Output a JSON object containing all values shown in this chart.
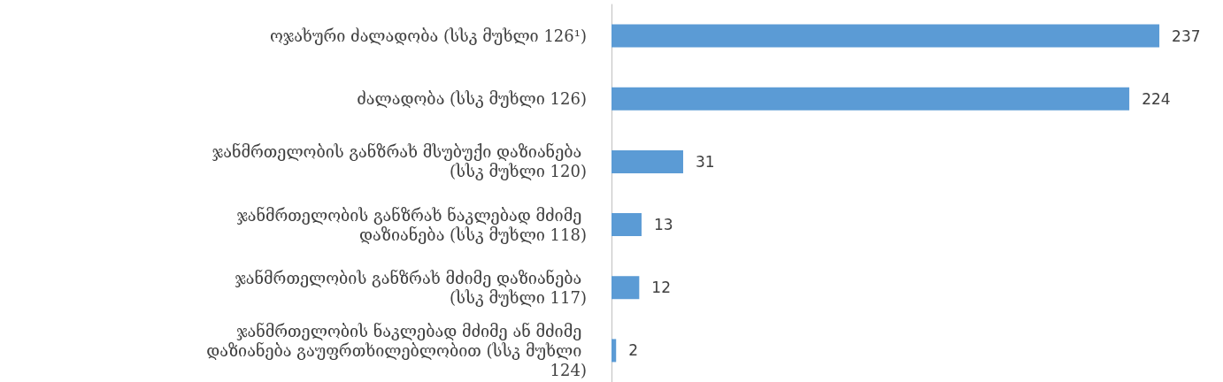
{
  "chart_data": {
    "type": "bar",
    "orientation": "horizontal",
    "categories": [
      "ოჯახური ძალადობა (სსკ მუხლი 126¹)",
      "ძალადობა (სსკ მუხლი 126)",
      "ჯანმრთელობის განზრახ მსუბუქი დაზიანება (სსკ მუხლი 120)",
      "ჯანმრთელობის განზრახ ნაკლებად მძიმე დაზიანება (სსკ მუხლი 118)",
      "ჯანმრთელობის განზრახ მძიმე დაზიანება (სსკ მუხლი 117)",
      "ჯანმრთელობის ნაკლებად მძიმე ან მძიმე დაზიანება გაუფრთხილებლობით (სსკ მუხლი 124)"
    ],
    "values": [
      237,
      224,
      31,
      13,
      12,
      2
    ],
    "color": "#5b9bd5",
    "data_labels": true
  }
}
